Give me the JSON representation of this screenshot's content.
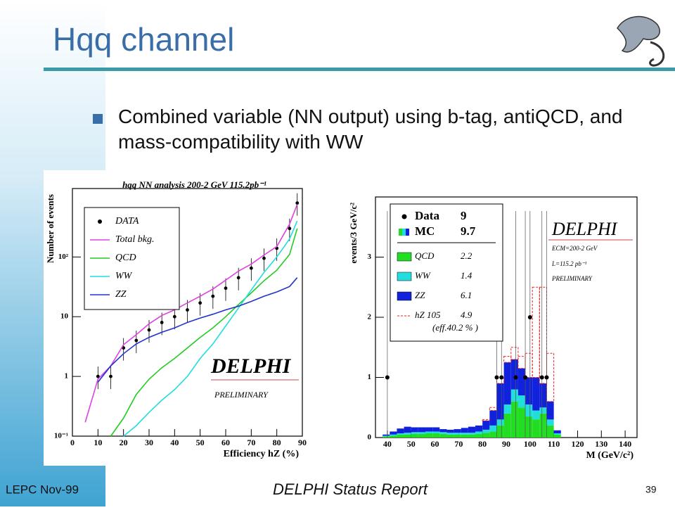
{
  "slide": {
    "title": "Hqq channel",
    "bullet": "Combined variable (NN output) using b-tag, antiQCD, and mass-compatibility with WW",
    "footer_left": "LEPC Nov-99",
    "footer_center": "DELPHI Status Report",
    "page_number": "39"
  },
  "chart_data": [
    {
      "type": "line",
      "title": "hqq NN analysis 200-2 GeV  115.2pb⁻¹",
      "x_label": "Efficiency hZ (%)",
      "y_label": "Number of events",
      "log_y": true,
      "xlim": [
        0,
        90
      ],
      "ylim": [
        0.1,
        1400
      ],
      "xticks": [
        0,
        10,
        20,
        30,
        40,
        50,
        60,
        70,
        80,
        90
      ],
      "yticks": [
        {
          "value": 0.1,
          "label": "10⁻¹"
        },
        1,
        10,
        {
          "value": 100,
          "label": "10²"
        }
      ],
      "x": [
        5,
        10,
        15,
        20,
        25,
        30,
        35,
        40,
        45,
        50,
        55,
        60,
        65,
        70,
        75,
        80,
        85,
        88
      ],
      "series": [
        {
          "name": "DATA",
          "style": "points",
          "color": "#000000",
          "values": [
            null,
            1,
            1,
            3,
            4,
            6,
            8,
            10,
            13,
            17,
            22,
            30,
            45,
            65,
            95,
            140,
            300,
            800
          ]
        },
        {
          "name": "Total bkg.",
          "style": "line",
          "color": "#e040e0",
          "values": [
            0.17,
            0.9,
            1.5,
            3.4,
            5,
            7.6,
            10.5,
            13,
            17,
            22,
            29,
            41,
            58,
            76,
            108,
            150,
            355,
            760
          ]
        },
        {
          "name": "QCD",
          "style": "line",
          "color": "#22cc22",
          "values": [
            null,
            null,
            0.1,
            0.2,
            0.5,
            0.9,
            1.4,
            2,
            3,
            4.5,
            6.5,
            10,
            16,
            25,
            40,
            60,
            110,
            300
          ]
        },
        {
          "name": "WW",
          "style": "line",
          "color": "#22dddd",
          "values": [
            null,
            null,
            null,
            0.1,
            0.15,
            0.25,
            0.4,
            0.6,
            1,
            2,
            3.5,
            7,
            14,
            28,
            55,
            100,
            200,
            400
          ]
        },
        {
          "name": "ZZ",
          "style": "line",
          "color": "#2233cc",
          "values": [
            null,
            0.8,
            1.5,
            2.4,
            3.5,
            4.5,
            5.5,
            6.5,
            8,
            9.5,
            11,
            13,
            15,
            18,
            22,
            26,
            32,
            45
          ]
        }
      ],
      "annotations": [
        "DELPHI",
        "PRELIMINARY"
      ]
    },
    {
      "type": "histogram",
      "x_label": "M (GeV/c²)",
      "y_label": "events/3 GeV/c²",
      "xlim": [
        35,
        145
      ],
      "ylim": [
        0,
        4
      ],
      "xticks": [
        40,
        50,
        60,
        70,
        80,
        90,
        100,
        110,
        120,
        130,
        140
      ],
      "yticks": [
        0,
        1,
        2,
        3
      ],
      "bins": [
        38,
        41,
        44,
        47,
        50,
        53,
        56,
        59,
        62,
        65,
        68,
        71,
        74,
        77,
        80,
        83,
        86,
        89,
        92,
        95,
        98,
        101,
        104,
        107,
        110,
        113
      ],
      "series": [
        {
          "name": "QCD",
          "total": 2.2,
          "color": "#22dd22",
          "values": [
            0.02,
            0.03,
            0.05,
            0.05,
            0.06,
            0.06,
            0.07,
            0.07,
            0.06,
            0.05,
            0.05,
            0.05,
            0.05,
            0.06,
            0.08,
            0.1,
            0.2,
            0.4,
            0.6,
            0.5,
            0.35,
            0.3,
            0.4,
            0.2,
            0.05
          ]
        },
        {
          "name": "WW",
          "total": 1.4,
          "color": "#22dddd",
          "values": [
            0.01,
            0.02,
            0.02,
            0.03,
            0.03,
            0.03,
            0.03,
            0.03,
            0.03,
            0.03,
            0.03,
            0.03,
            0.03,
            0.04,
            0.05,
            0.1,
            0.1,
            0.15,
            0.2,
            0.2,
            0.2,
            0.15,
            0.1,
            0.1,
            0.02
          ]
        },
        {
          "name": "ZZ",
          "total": 6.1,
          "color": "#1122dd",
          "values": [
            0.02,
            0.05,
            0.08,
            0.1,
            0.08,
            0.08,
            0.07,
            0.07,
            0.05,
            0.05,
            0.06,
            0.08,
            0.1,
            0.1,
            0.15,
            0.25,
            0.6,
            0.7,
            0.5,
            0.45,
            0.45,
            0.55,
            0.4,
            0.3,
            0.05
          ]
        },
        {
          "name": "hZ 105",
          "total": 4.9,
          "note": "(eff.40.2 % )",
          "color": "#ee2222",
          "dashed": true,
          "values": [
            0,
            0,
            0,
            0,
            0,
            0,
            0,
            0,
            0,
            0,
            0,
            0,
            0,
            0,
            0.02,
            0.05,
            0.1,
            0.1,
            0.2,
            0.2,
            0.4,
            1.5,
            1.6,
            0.8,
            0
          ]
        }
      ],
      "mc": {
        "name": "MC",
        "total": 9.7
      },
      "data_points": {
        "name": "Data",
        "total": 9,
        "color": "#000000",
        "x": [
          40,
          86,
          88,
          94,
          98,
          100,
          105,
          107
        ],
        "values": [
          1,
          1,
          1,
          1,
          1,
          2,
          1,
          1
        ]
      },
      "annotations": [
        "DELPHI",
        "ECM=200-2 GeV",
        "L=115.2 pb⁻¹",
        "PRELIMINARY"
      ]
    }
  ]
}
